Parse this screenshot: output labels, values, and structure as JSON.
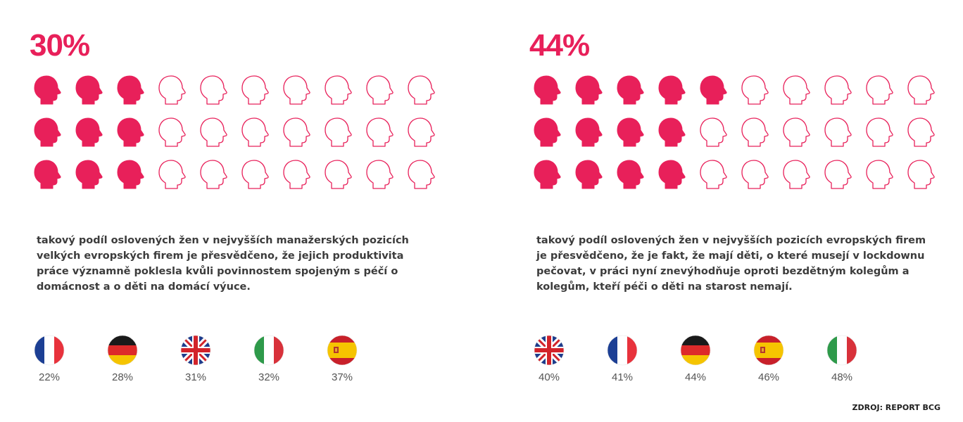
{
  "chart_data": [
    {
      "type": "pictograph",
      "headline": "30%",
      "value": 30,
      "rows": 3,
      "cols": 10,
      "filled_per_row": 3,
      "description": "takový podíl oslovených žen v nejvyšších manažerských pozicích velkých evropských firem je přesvědčeno, že jejich produktivita práce významně poklesla kvůli povinnostem spojeným s péčí o domácnost a o děti na domácí výuce.",
      "countries": [
        {
          "flag": "france-flag",
          "label": "22%",
          "value": 22
        },
        {
          "flag": "germany-flag",
          "label": "28%",
          "value": 28
        },
        {
          "flag": "uk-flag",
          "label": "31%",
          "value": 31
        },
        {
          "flag": "italy-flag",
          "label": "32%",
          "value": 32
        },
        {
          "flag": "spain-flag",
          "label": "37%",
          "value": 37
        }
      ]
    },
    {
      "type": "pictograph",
      "headline": "44%",
      "value": 44,
      "rows": 3,
      "cols": 10,
      "filled_per_row": [
        5,
        4,
        4
      ],
      "description": "takový podíl oslovených žen v nejvyšších pozicích evropských firem je přesvědčeno, že je fakt, že mají děti, o které musejí v lockdownu pečovat, v práci nyní znevýhodňuje oproti bezdětným kolegům a kolegům, kteří péči o děti na starost nemají.",
      "countries": [
        {
          "flag": "uk-flag",
          "label": "40%",
          "value": 40
        },
        {
          "flag": "france-flag",
          "label": "41%",
          "value": 41
        },
        {
          "flag": "germany-flag",
          "label": "44%",
          "value": 44
        },
        {
          "flag": "spain-flag",
          "label": "46%",
          "value": 46
        },
        {
          "flag": "italy-flag",
          "label": "48%",
          "value": 48
        }
      ]
    }
  ],
  "source": "ZDROJ: REPORT BCG",
  "colors": {
    "accent": "#e8205a",
    "text": "#3a3a3a"
  }
}
